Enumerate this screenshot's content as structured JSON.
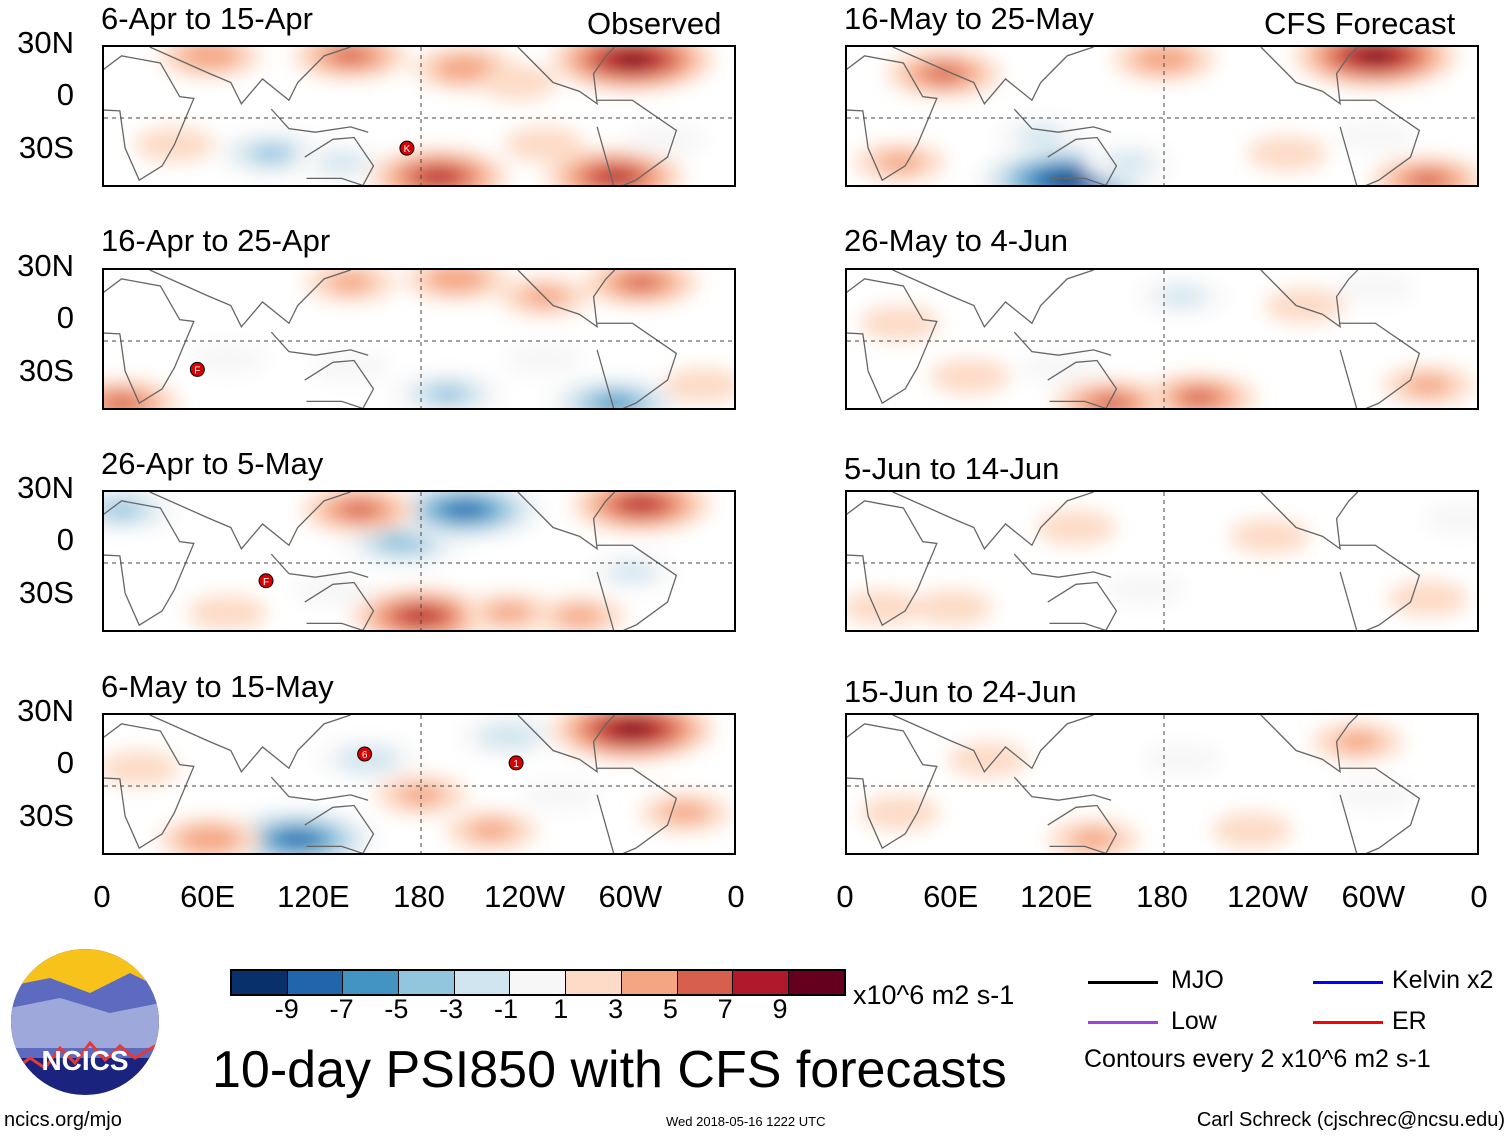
{
  "title": "10-day PSI850 with CFS forecasts",
  "column_labels": {
    "observed": "Observed",
    "forecast": "CFS Forecast"
  },
  "lat_labels": [
    "30N",
    "0",
    "30S"
  ],
  "lon_labels": [
    "0",
    "60E",
    "120E",
    "180",
    "120W",
    "60W",
    "0"
  ],
  "panels": [
    {
      "title": "6-Apr to 15-Apr",
      "anomalies": [
        [
          140,
          35,
          5
        ],
        [
          205,
          28,
          4
        ],
        [
          235,
          20,
          2
        ],
        [
          300,
          33,
          9
        ],
        [
          60,
          35,
          4
        ],
        [
          95,
          -20,
          -5
        ],
        [
          135,
          -25,
          -3
        ],
        [
          190,
          -33,
          7
        ],
        [
          290,
          -33,
          7
        ],
        [
          250,
          -15,
          2
        ],
        [
          40,
          -15,
          2
        ],
        [
          320,
          -12,
          -2
        ]
      ],
      "storms": [
        {
          "lon": 172,
          "lat": -17,
          "letter": "K"
        }
      ]
    },
    {
      "title": "16-Apr to 25-Apr",
      "anomalies": [
        [
          140,
          33,
          3
        ],
        [
          200,
          35,
          4
        ],
        [
          250,
          25,
          3
        ],
        [
          305,
          33,
          5
        ],
        [
          70,
          -10,
          -2
        ],
        [
          140,
          -15,
          -2
        ],
        [
          195,
          -30,
          -5
        ],
        [
          290,
          -35,
          -7
        ],
        [
          10,
          -35,
          5
        ],
        [
          250,
          -10,
          -2
        ],
        [
          340,
          -25,
          2
        ]
      ],
      "storms": [
        {
          "lon": 53,
          "lat": -16,
          "letter": "F"
        }
      ]
    },
    {
      "title": "26-Apr to 5-May",
      "anomalies": [
        [
          170,
          12,
          -6
        ],
        [
          205,
          30,
          -9
        ],
        [
          145,
          30,
          5
        ],
        [
          305,
          33,
          7
        ],
        [
          10,
          30,
          -5
        ],
        [
          180,
          -30,
          7
        ],
        [
          230,
          -28,
          3
        ],
        [
          270,
          -30,
          3
        ],
        [
          70,
          -28,
          2
        ],
        [
          130,
          -15,
          -2
        ],
        [
          300,
          -5,
          -3
        ]
      ],
      "storms": [
        {
          "lon": 92,
          "lat": -10,
          "letter": "F"
        }
      ]
    },
    {
      "title": "6-May to 15-May",
      "anomalies": [
        [
          150,
          15,
          -4
        ],
        [
          230,
          28,
          -4
        ],
        [
          300,
          32,
          9
        ],
        [
          110,
          -30,
          -9
        ],
        [
          60,
          -30,
          4
        ],
        [
          180,
          -5,
          3
        ],
        [
          220,
          -25,
          3
        ],
        [
          260,
          -5,
          -2
        ],
        [
          330,
          -15,
          3
        ],
        [
          20,
          10,
          2
        ]
      ],
      "storms": [
        {
          "lon": 148,
          "lat": 18,
          "letter": "6"
        },
        {
          "lon": 234,
          "lat": 13,
          "letter": "1"
        }
      ]
    },
    {
      "title": "16-May to 25-May",
      "anomalies": [
        [
          55,
          25,
          5
        ],
        [
          180,
          33,
          4
        ],
        [
          300,
          35,
          9
        ],
        [
          110,
          -10,
          -3
        ],
        [
          125,
          -35,
          -11
        ],
        [
          160,
          -25,
          -3
        ],
        [
          300,
          -10,
          -2
        ],
        [
          330,
          -35,
          5
        ],
        [
          250,
          -20,
          2
        ],
        [
          30,
          -25,
          3
        ]
      ],
      "storms": []
    },
    {
      "title": "26-May to 4-Jun",
      "anomalies": [
        [
          70,
          -20,
          2
        ],
        [
          190,
          25,
          -3
        ],
        [
          260,
          20,
          2
        ],
        [
          300,
          30,
          -2
        ],
        [
          200,
          -32,
          5
        ],
        [
          150,
          -35,
          5
        ],
        [
          330,
          -25,
          3
        ],
        [
          120,
          -15,
          -2
        ],
        [
          30,
          10,
          2
        ]
      ],
      "storms": []
    },
    {
      "title": "5-Jun to 14-Jun",
      "anomalies": [
        [
          240,
          15,
          2
        ],
        [
          130,
          20,
          2
        ],
        [
          170,
          -15,
          -2
        ],
        [
          60,
          -25,
          2
        ],
        [
          330,
          -20,
          2
        ],
        [
          20,
          -25,
          2
        ],
        [
          350,
          25,
          -2
        ]
      ],
      "storms": []
    },
    {
      "title": "15-Jun to 24-Jun",
      "anomalies": [
        [
          190,
          15,
          -2
        ],
        [
          290,
          25,
          3
        ],
        [
          80,
          15,
          2
        ],
        [
          140,
          -30,
          3
        ],
        [
          230,
          -25,
          2
        ],
        [
          300,
          -5,
          -2
        ],
        [
          30,
          -15,
          2
        ]
      ],
      "storms": []
    }
  ],
  "colorbar": {
    "colors": [
      "#08306b",
      "#2166ac",
      "#4393c3",
      "#92c5de",
      "#d1e5f0",
      "#f7f7f7",
      "#fddbc7",
      "#f4a582",
      "#d6604d",
      "#b2182b",
      "#67001f"
    ],
    "labels": [
      "-9",
      "-7",
      "-5",
      "-3",
      "-1",
      "1",
      "3",
      "5",
      "7",
      "9"
    ],
    "units": "x10^6 m2 s-1"
  },
  "legend": {
    "items": [
      {
        "label": "MJO",
        "color": "#000000"
      },
      {
        "label": "Kelvin x2",
        "color": "#0000ff"
      },
      {
        "label": "Low",
        "color": "#a040e0"
      },
      {
        "label": "ER",
        "color": "#ff0000"
      }
    ],
    "contours": "Contours every 2 x10^6 m2 s-1"
  },
  "logo": {
    "text": "NCICS"
  },
  "footer": {
    "left": "ncics.org/mjo",
    "center": "Wed 2018-05-16 1222 UTC",
    "right": "Carl Schreck (cjschrec@ncsu.edu)"
  }
}
